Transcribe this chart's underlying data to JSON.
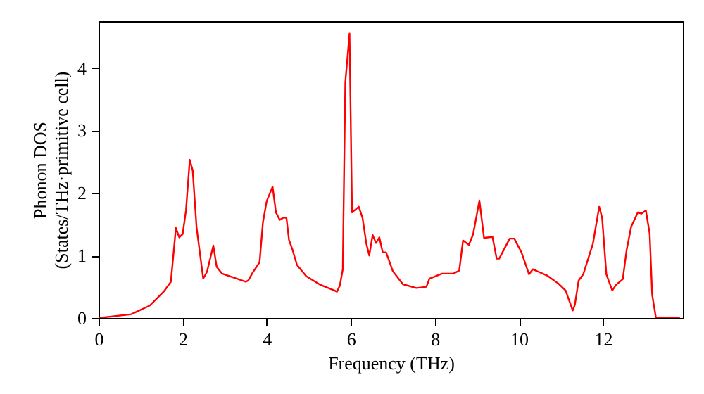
{
  "chart_data": {
    "type": "line",
    "xlabel": "Frequency (THz)",
    "ylabel": "Phonon DOS\n(States/THz·primitive cell)",
    "xlim": [
      0,
      13.9
    ],
    "ylim": [
      0,
      4.75
    ],
    "xticks": [
      0,
      2,
      4,
      6,
      8,
      10,
      12
    ],
    "yticks": [
      0,
      1,
      2,
      3,
      4
    ],
    "line_style": "solid",
    "series": [
      {
        "color": "#ff0000",
        "x": [
          0,
          0.78,
          1.22,
          1.56,
          1.72,
          1.84,
          1.92,
          2.0,
          2.08,
          2.17,
          2.24,
          2.33,
          2.49,
          2.58,
          2.73,
          2.81,
          2.94,
          3.5,
          3.56,
          3.67,
          3.83,
          3.91,
          4.0,
          4.14,
          4.22,
          4.31,
          4.41,
          4.47,
          4.53,
          4.61,
          4.72,
          4.94,
          5.28,
          5.61,
          5.67,
          5.74,
          5.81,
          5.87,
          5.97,
          6.03,
          6.19,
          6.28,
          6.37,
          6.44,
          6.52,
          6.6,
          6.68,
          6.76,
          6.84,
          7.0,
          7.24,
          7.56,
          7.8,
          7.87,
          8.17,
          8.44,
          8.58,
          8.67,
          8.81,
          8.91,
          9.06,
          9.17,
          9.37,
          9.47,
          9.53,
          9.78,
          9.89,
          10.06,
          10.24,
          10.33,
          10.67,
          10.94,
          11.11,
          11.28,
          11.33,
          11.42,
          11.53,
          11.76,
          11.91,
          11.98,
          12.08,
          12.22,
          12.31,
          12.47,
          12.56,
          12.67,
          12.83,
          12.91,
          13.02,
          13.11,
          13.17,
          13.26,
          13.83
        ],
        "values": [
          0,
          0.06,
          0.2,
          0.43,
          0.58,
          1.44,
          1.29,
          1.34,
          1.72,
          2.53,
          2.36,
          1.46,
          0.63,
          0.74,
          1.16,
          0.82,
          0.71,
          0.58,
          0.6,
          0.73,
          0.89,
          1.53,
          1.87,
          2.1,
          1.69,
          1.57,
          1.61,
          1.6,
          1.25,
          1.1,
          0.85,
          0.67,
          0.53,
          0.44,
          0.42,
          0.52,
          0.78,
          3.77,
          4.55,
          1.69,
          1.78,
          1.6,
          1.19,
          1.0,
          1.33,
          1.2,
          1.29,
          1.05,
          1.05,
          0.75,
          0.54,
          0.48,
          0.5,
          0.63,
          0.71,
          0.71,
          0.76,
          1.24,
          1.17,
          1.34,
          1.88,
          1.28,
          1.3,
          0.95,
          0.95,
          1.27,
          1.27,
          1.05,
          0.7,
          0.78,
          0.68,
          0.55,
          0.44,
          0.12,
          0.21,
          0.6,
          0.7,
          1.19,
          1.78,
          1.6,
          0.7,
          0.44,
          0.53,
          0.62,
          1.08,
          1.46,
          1.69,
          1.67,
          1.72,
          1.35,
          0.37,
          0,
          0
        ]
      }
    ]
  }
}
